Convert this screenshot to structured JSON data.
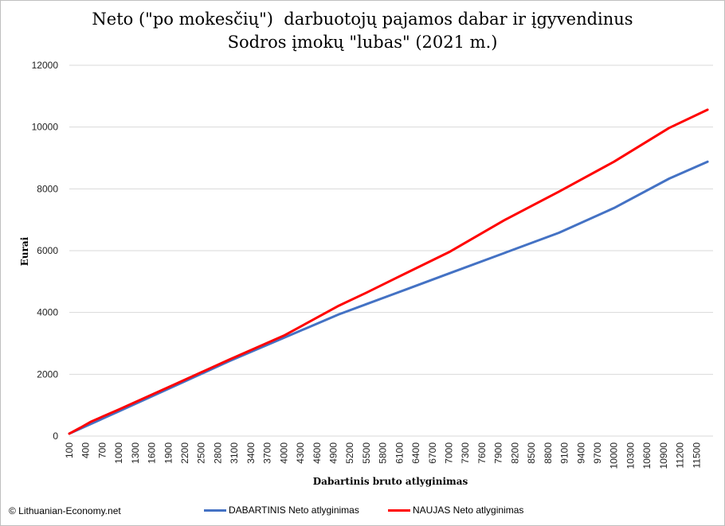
{
  "chart_data": {
    "type": "line",
    "title_lines": [
      "Neto (\"po mokesčių\")  darbuotojų pajamos dabar ir įgyvendinus",
      "Sodros įmokų \"lubas\" (2021 m.)"
    ],
    "xlabel": "Dabartinis bruto atlyginimas",
    "ylabel": "Eurai",
    "ylim": [
      0,
      12000
    ],
    "yticks": [
      0,
      2000,
      4000,
      6000,
      8000,
      10000,
      12000
    ],
    "x_tick_labels": [
      "100",
      "400",
      "700",
      "1000",
      "1300",
      "1600",
      "1900",
      "2200",
      "2500",
      "2800",
      "3100",
      "3400",
      "3700",
      "4000",
      "4300",
      "4600",
      "4900",
      "5200",
      "5500",
      "5800",
      "6100",
      "6400",
      "6700",
      "7000",
      "7300",
      "7600",
      "7900",
      "8200",
      "8500",
      "8800",
      "9100",
      "9400",
      "9700",
      "10000",
      "10300",
      "10600",
      "10900",
      "11200",
      "11500"
    ],
    "grid": true,
    "legend_position": "bottom",
    "series": [
      {
        "name": "DABARTINIS Neto atlyginimas",
        "color": "#4472C4",
        "x": [
          100,
          300,
          500,
          1000,
          2000,
          3000,
          4000,
          5000,
          5500,
          6000,
          7000,
          8000,
          9000,
          10000,
          11000,
          11700
        ],
        "values": [
          80,
          240,
          400,
          800,
          1610,
          2420,
          3180,
          3940,
          4270,
          4600,
          5260,
          5920,
          6580,
          7380,
          8330,
          8880
        ]
      },
      {
        "name": "NAUJAS Neto atlyginimas",
        "color": "#FF0000",
        "x": [
          100,
          300,
          500,
          1000,
          2000,
          3000,
          4000,
          5000,
          5500,
          6000,
          7000,
          8000,
          9000,
          10000,
          11000,
          11700
        ],
        "values": [
          80,
          270,
          470,
          860,
          1660,
          2470,
          3250,
          4220,
          4640,
          5080,
          5950,
          6980,
          7910,
          8880,
          9970,
          10560
        ]
      }
    ]
  },
  "credit": "© Lithuanian-Economy.net"
}
